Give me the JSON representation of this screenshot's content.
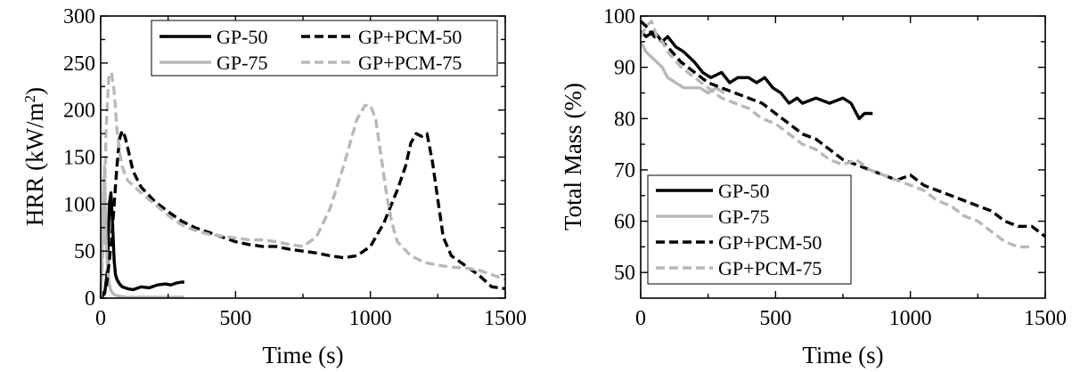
{
  "chart_data": [
    {
      "type": "line",
      "xlabel": "Time (s)",
      "ylabel": "HRR (kW/m²)",
      "xlim": [
        0,
        1500
      ],
      "ylim": [
        0,
        300
      ],
      "xticks": [
        0,
        500,
        1000,
        1500
      ],
      "yticks": [
        0,
        50,
        100,
        150,
        200,
        250,
        300
      ],
      "grid": false,
      "legend_position": "top-right",
      "legend_columns": 2,
      "series": [
        {
          "name": "GP-50",
          "color": "#000000",
          "dash": "solid",
          "x": [
            0,
            15,
            25,
            32,
            38,
            44,
            50,
            55,
            60,
            70,
            80,
            100,
            120,
            150,
            180,
            210,
            240,
            260,
            280,
            300,
            310
          ],
          "y": [
            0,
            5,
            30,
            100,
            112,
            80,
            40,
            25,
            20,
            15,
            12,
            10,
            9,
            12,
            11,
            14,
            15,
            14,
            16,
            17,
            17
          ]
        },
        {
          "name": "GP-75",
          "color": "#b8b8b8",
          "dash": "solid",
          "x": [
            0,
            8,
            14,
            20,
            26,
            32,
            38,
            45,
            55,
            70,
            100,
            150,
            200,
            250,
            300,
            310
          ],
          "y": [
            0,
            80,
            140,
            60,
            30,
            15,
            8,
            5,
            3,
            2,
            1,
            1,
            1,
            1,
            1,
            1
          ]
        },
        {
          "name": "GP+PCM-50",
          "color": "#000000",
          "dash": "dashed",
          "x": [
            0,
            20,
            40,
            60,
            70,
            80,
            90,
            100,
            120,
            150,
            200,
            250,
            300,
            350,
            400,
            450,
            500,
            550,
            600,
            650,
            700,
            750,
            800,
            850,
            900,
            950,
            1000,
            1050,
            1100,
            1130,
            1150,
            1170,
            1190,
            1210,
            1230,
            1250,
            1270,
            1300,
            1350,
            1400,
            1450,
            1500
          ],
          "y": [
            0,
            10,
            60,
            140,
            170,
            178,
            172,
            160,
            135,
            118,
            103,
            92,
            82,
            75,
            70,
            65,
            60,
            57,
            55,
            55,
            52,
            50,
            48,
            45,
            43,
            45,
            55,
            80,
            115,
            140,
            165,
            175,
            172,
            175,
            145,
            105,
            65,
            45,
            35,
            25,
            12,
            10
          ]
        },
        {
          "name": "GP+PCM-75",
          "color": "#b8b8b8",
          "dash": "dashed",
          "x": [
            0,
            10,
            20,
            30,
            40,
            50,
            60,
            70,
            80,
            90,
            100,
            120,
            150,
            200,
            250,
            300,
            350,
            400,
            450,
            500,
            550,
            600,
            650,
            700,
            750,
            800,
            850,
            900,
            950,
            980,
            1000,
            1020,
            1040,
            1060,
            1080,
            1100,
            1150,
            1200,
            1250,
            1300,
            1350,
            1400,
            1450,
            1500
          ],
          "y": [
            0,
            60,
            180,
            235,
            240,
            220,
            180,
            155,
            140,
            132,
            125,
            120,
            112,
            100,
            88,
            78,
            72,
            68,
            66,
            64,
            62,
            62,
            60,
            57,
            55,
            65,
            95,
            140,
            190,
            205,
            205,
            190,
            150,
            110,
            80,
            60,
            45,
            38,
            35,
            33,
            32,
            30,
            25,
            20
          ]
        }
      ]
    },
    {
      "type": "line",
      "xlabel": "Time (s)",
      "ylabel": "Total Mass (%)",
      "xlim": [
        0,
        1500
      ],
      "ylim": [
        45,
        100
      ],
      "xticks": [
        0,
        500,
        1000,
        1500
      ],
      "yticks": [
        50,
        60,
        70,
        80,
        90,
        100
      ],
      "grid": false,
      "legend_position": "bottom-left",
      "legend_columns": 1,
      "series": [
        {
          "name": "GP-50",
          "color": "#000000",
          "dash": "solid",
          "x": [
            0,
            20,
            50,
            80,
            100,
            130,
            160,
            200,
            230,
            260,
            300,
            330,
            360,
            400,
            430,
            460,
            490,
            520,
            550,
            580,
            600,
            650,
            700,
            750,
            780,
            800,
            810,
            830,
            850,
            860
          ],
          "y": [
            97,
            96,
            97,
            95,
            96,
            94,
            93,
            91,
            89,
            88,
            89,
            87,
            88,
            88,
            87,
            88,
            86,
            85,
            83,
            84,
            83,
            84,
            83,
            84,
            83,
            81,
            80,
            81,
            81,
            81
          ]
        },
        {
          "name": "GP-75",
          "color": "#b8b8b8",
          "dash": "solid",
          "x": [
            0,
            20,
            40,
            60,
            80,
            100,
            130,
            160,
            190,
            220,
            250,
            280,
            310
          ],
          "y": [
            95,
            93,
            92,
            91,
            90,
            88,
            87,
            86,
            86,
            86,
            85,
            86,
            85
          ]
        },
        {
          "name": "GP+PCM-50",
          "color": "#000000",
          "dash": "dashed",
          "x": [
            0,
            20,
            50,
            80,
            100,
            150,
            200,
            250,
            300,
            350,
            400,
            450,
            500,
            550,
            600,
            650,
            700,
            750,
            800,
            850,
            900,
            950,
            1000,
            1050,
            1100,
            1150,
            1200,
            1250,
            1300,
            1350,
            1400,
            1450,
            1500
          ],
          "y": [
            99,
            98,
            96,
            95,
            94,
            91,
            89,
            87,
            86,
            85,
            84,
            83,
            81,
            79,
            77,
            76,
            74,
            72,
            71,
            70,
            69,
            68,
            69,
            67,
            66,
            65,
            64,
            63,
            62,
            60,
            59,
            59,
            57
          ]
        },
        {
          "name": "GP+PCM-75",
          "color": "#b8b8b8",
          "dash": "dashed",
          "x": [
            0,
            20,
            40,
            60,
            80,
            100,
            150,
            200,
            250,
            300,
            350,
            400,
            450,
            500,
            550,
            600,
            650,
            700,
            750,
            800,
            850,
            900,
            950,
            1000,
            1050,
            1100,
            1150,
            1200,
            1250,
            1300,
            1350,
            1400,
            1450
          ],
          "y": [
            96,
            98,
            99,
            96,
            95,
            93,
            90,
            88,
            86,
            84,
            83,
            82,
            80,
            79,
            77,
            75,
            74,
            72,
            71,
            72,
            70,
            69,
            68,
            67,
            66,
            64,
            63,
            61,
            60,
            58,
            56,
            55,
            55
          ]
        }
      ]
    }
  ]
}
